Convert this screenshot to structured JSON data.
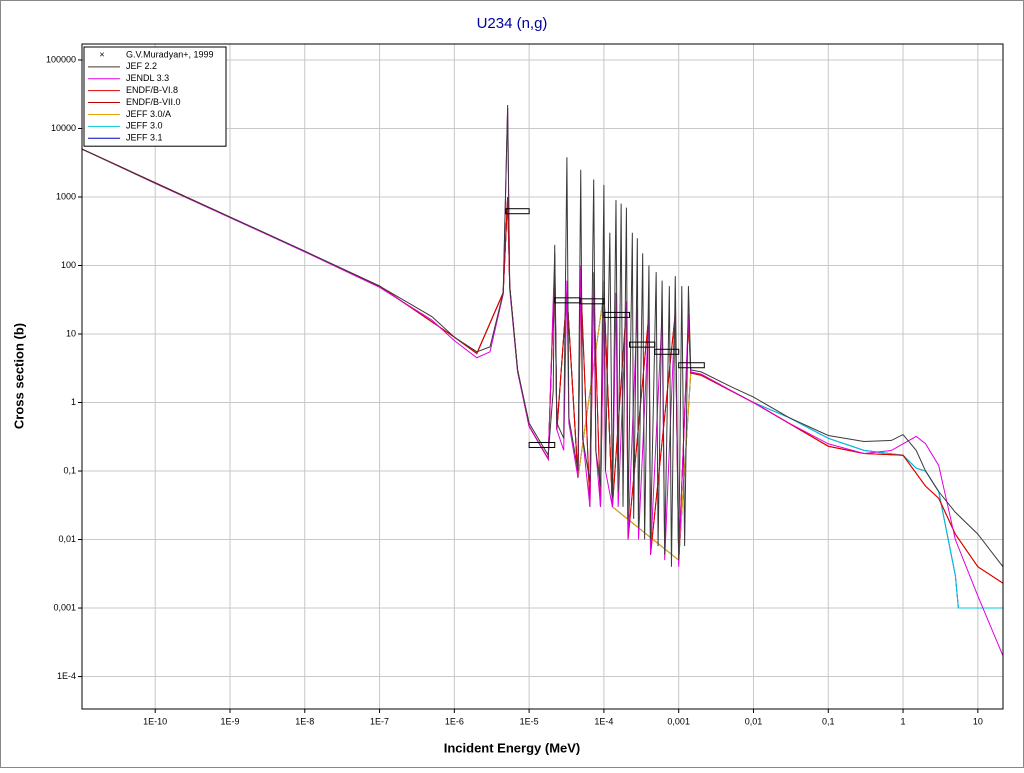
{
  "chart_data": {
    "type": "line",
    "title": "U234 (n,g)",
    "x_label": "Incident Energy (MeV)",
    "y_label": "Cross section (b)",
    "xscale": "log",
    "yscale": "log",
    "grid": true,
    "legend": "top-left",
    "xlim": [
      1.05e-11,
      21.7
    ],
    "ylim": [
      3.36e-05,
      171000
    ],
    "xticks": [
      {
        "value": 1e-10,
        "label": "1E-10"
      },
      {
        "value": 1e-09,
        "label": "1E-9"
      },
      {
        "value": 1e-08,
        "label": "1E-8"
      },
      {
        "value": 1e-07,
        "label": "1E-7"
      },
      {
        "value": 1e-06,
        "label": "1E-6"
      },
      {
        "value": 1e-05,
        "label": "1E-5"
      },
      {
        "value": 0.0001,
        "label": "1E-4"
      },
      {
        "value": 0.001,
        "label": "0,001"
      },
      {
        "value": 0.01,
        "label": "0,01"
      },
      {
        "value": 0.1,
        "label": "0,1"
      },
      1,
      10
    ],
    "yticks": [
      {
        "value": 0.0001,
        "label": "1E-4"
      },
      {
        "value": 0.001,
        "label": "0,001"
      },
      {
        "value": 0.01,
        "label": "0,01"
      },
      {
        "value": 0.1,
        "label": "0,1"
      },
      1,
      10,
      100,
      1000,
      10000,
      100000
    ],
    "experimental": {
      "name": "G.V.Muradyan+, 1999",
      "color": "#000000",
      "x_low": [
        4.9e-06,
        1e-05,
        2.2e-05,
        4.8e-05,
        0.0001,
        0.00022,
        0.00048,
        0.001
      ],
      "x_high": [
        1e-05,
        2.2e-05,
        4.8e-05,
        0.0001,
        0.00022,
        0.00048,
        0.001,
        0.0022
      ],
      "values": [
        620,
        0.24,
        31,
        30,
        19,
        7,
        5.5,
        3.5
      ]
    },
    "series": [
      {
        "name": "JEF 2.2",
        "color": "#3a3a3a",
        "x": [
          1.05e-11,
          1e-10,
          1e-09,
          1e-08,
          1e-07,
          5e-07,
          1e-06,
          2e-06,
          3e-06,
          4.5e-06,
          5.16e-06,
          5.5e-06,
          7e-06,
          1e-05,
          1.8e-05,
          2.1e-05,
          2.2e-05,
          2.35e-05,
          2.9e-05,
          3.2e-05,
          3.4e-05,
          4.5e-05,
          4.9e-05,
          5.2e-05,
          6.5e-05,
          7.3e-05,
          7.8e-05,
          9e-05,
          0.0001,
          0.000105,
          0.00012,
          0.00013,
          0.000145,
          0.000155,
          0.00017,
          0.00018,
          0.0002,
          0.00021,
          0.00024,
          0.00025,
          0.00028,
          0.00029,
          0.00033,
          0.00035,
          0.0004,
          0.00042,
          0.0005,
          0.00053,
          0.0006,
          0.00065,
          0.00075,
          0.0008,
          0.0009,
          0.001,
          0.0011,
          0.0012,
          0.00135,
          0.00145,
          0.002,
          0.005,
          0.01,
          0.03,
          0.1,
          0.3,
          0.7,
          1,
          1.5,
          2,
          3,
          5,
          10,
          21.7
        ],
        "values": [
          5000,
          1600,
          510,
          162,
          50,
          18,
          9,
          5.5,
          6.5,
          40,
          22000,
          50,
          3,
          0.5,
          0.17,
          1.5,
          200,
          0.5,
          0.3,
          3800,
          0.6,
          0.1,
          2500,
          0.3,
          0.07,
          1800,
          0.2,
          0.06,
          1500,
          0.1,
          300,
          0.04,
          900,
          0.05,
          800,
          0.03,
          700,
          0.02,
          300,
          0.02,
          250,
          0.015,
          150,
          0.01,
          100,
          0.01,
          80,
          0.008,
          60,
          0.006,
          50,
          0.004,
          70,
          0.005,
          50,
          0.008,
          50,
          3,
          2.8,
          1.7,
          1.2,
          0.6,
          0.33,
          0.27,
          0.28,
          0.34,
          0.2,
          0.1,
          0.05,
          0.025,
          0.012,
          0.004
        ]
      },
      {
        "name": "JENDL 3.3",
        "color": "#e000e0",
        "x": [
          1.05e-11,
          1e-10,
          1e-09,
          1e-08,
          1e-07,
          5e-07,
          1e-06,
          2e-06,
          3e-06,
          4.5e-06,
          5.16e-06,
          5.5e-06,
          7e-06,
          1e-05,
          1.8e-05,
          2.2e-05,
          2.35e-05,
          2.9e-05,
          3.2e-05,
          3.4e-05,
          4.5e-05,
          4.9e-05,
          5.2e-05,
          6.5e-05,
          7.3e-05,
          7.8e-05,
          9e-05,
          0.0001,
          0.000105,
          0.00013,
          0.000145,
          0.000155,
          0.0002,
          0.00021,
          0.00028,
          0.00029,
          0.0004,
          0.00042,
          0.0006,
          0.00065,
          0.0009,
          0.001,
          0.00135,
          0.00145,
          0.002,
          0.005,
          0.01,
          0.03,
          0.1,
          0.3,
          0.7,
          1,
          1.5,
          2,
          3,
          5,
          10,
          21.7
        ],
        "values": [
          5000,
          1580,
          500,
          158,
          48,
          16,
          8,
          4.5,
          5.5,
          38,
          20000,
          45,
          2.8,
          0.45,
          0.15,
          150,
          0.4,
          0.2,
          60,
          0.5,
          0.08,
          100,
          0.3,
          0.03,
          80,
          0.2,
          0.03,
          60,
          0.1,
          0.03,
          40,
          0.03,
          30,
          0.01,
          25,
          0.01,
          20,
          0.006,
          20,
          0.005,
          25,
          0.004,
          20,
          2.8,
          2.6,
          1.5,
          1.0,
          0.5,
          0.25,
          0.18,
          0.2,
          0.25,
          0.32,
          0.25,
          0.12,
          0.01,
          0.0015,
          0.0002
        ]
      },
      {
        "name": "ENDF/B-VI.8",
        "color": "#e00000",
        "x": [
          1.05e-11,
          1e-09,
          1e-07,
          1e-06,
          2e-06,
          4.5e-06,
          5.16e-06,
          5.5e-06,
          7e-06,
          1e-05,
          1.8e-05,
          2.2e-05,
          2.35e-05,
          3.2e-05,
          4.5e-05,
          4.9e-05,
          6.5e-05,
          7.3e-05,
          9e-05,
          0.0001,
          0.00013,
          0.0002,
          0.00021,
          0.0004,
          0.00042,
          0.0009,
          0.001,
          0.00135,
          0.00145,
          0.002,
          0.01,
          0.1,
          0.3,
          1,
          2,
          3,
          5,
          10,
          21.7
        ],
        "values": [
          5000,
          510,
          50,
          9,
          5.2,
          40,
          1000,
          50,
          3,
          0.45,
          0.15,
          100,
          0.4,
          40,
          0.08,
          60,
          0.03,
          50,
          0.03,
          40,
          0.03,
          25,
          0.01,
          20,
          0.006,
          20,
          0.005,
          15,
          2.7,
          2.5,
          1.0,
          0.23,
          0.18,
          0.17,
          0.06,
          0.04,
          0.012,
          0.004,
          0.0023
        ]
      },
      {
        "name": "ENDF/B-VII.0",
        "color": "#c00000",
        "x": [
          1.05e-11,
          1e-09,
          1e-07,
          1e-06,
          2e-06,
          4.5e-06,
          5.16e-06,
          5.5e-06,
          7e-06,
          1e-05,
          1.8e-05,
          2.2e-05,
          2.35e-05,
          3.2e-05,
          4.5e-05,
          4.9e-05,
          6.5e-05,
          7.3e-05,
          9e-05,
          0.0001,
          0.00013,
          0.0002,
          0.00021,
          0.0004,
          0.00042,
          0.0009,
          0.001,
          0.00135,
          0.00145,
          0.002,
          0.01,
          0.1,
          0.3,
          1,
          2,
          3,
          5,
          10,
          21.7
        ],
        "values": [
          5000,
          510,
          50,
          9,
          5.2,
          40,
          1000,
          50,
          3,
          0.45,
          0.15,
          100,
          0.4,
          40,
          0.08,
          60,
          0.03,
          50,
          0.03,
          40,
          0.03,
          25,
          0.01,
          20,
          0.006,
          20,
          0.005,
          15,
          2.7,
          2.5,
          1.0,
          0.23,
          0.18,
          0.17,
          0.06,
          0.04,
          0.012,
          0.004,
          0.0023
        ]
      },
      {
        "name": "JEFF 3.0/A",
        "color": "#f0a000",
        "x": [
          1.05e-11,
          1e-09,
          1e-07,
          1e-06,
          2e-06,
          4.5e-06,
          5.16e-06,
          5.5e-06,
          7e-06,
          1e-05,
          1.8e-05,
          2.2e-05,
          2.35e-05,
          3.2e-05,
          4.5e-05,
          0.0001,
          0.00013,
          0.001,
          0.00145,
          0.002,
          0.01,
          0.1,
          0.3,
          1,
          2,
          3,
          5,
          10,
          21.7
        ],
        "values": [
          5000,
          510,
          50,
          9,
          5.2,
          40,
          1000,
          50,
          3,
          0.45,
          0.15,
          100,
          0.4,
          40,
          0.08,
          40,
          0.03,
          0.005,
          2.7,
          2.5,
          1.0,
          0.23,
          0.18,
          0.17,
          0.06,
          0.04,
          0.012,
          0.004,
          0.0023
        ]
      },
      {
        "name": "JEFF 3.0",
        "color": "#00c8e0",
        "x": [
          1.05e-11,
          1e-09,
          1e-07,
          1e-06,
          2e-06,
          4.5e-06,
          5.16e-06,
          5.5e-06,
          7e-06,
          1e-05,
          1.8e-05,
          2.2e-05,
          2.35e-05,
          3.2e-05,
          4.5e-05,
          0.0001,
          0.00013,
          0.001,
          0.00145,
          0.002,
          0.01,
          0.03,
          0.1,
          0.3,
          1,
          1.5,
          2,
          3,
          5,
          5.5,
          21.7
        ],
        "values": [
          5000,
          510,
          50,
          9,
          5.2,
          40,
          1000,
          50,
          3,
          0.45,
          0.15,
          100,
          0.4,
          40,
          0.08,
          40,
          0.03,
          0.005,
          2.7,
          2.5,
          1.0,
          0.6,
          0.3,
          0.2,
          0.17,
          0.11,
          0.1,
          0.05,
          0.003,
          0.001,
          0.001
        ]
      },
      {
        "name": "JEFF 3.1",
        "color": "#0000c0",
        "x": [
          1.05e-11,
          1e-09,
          1e-07,
          1e-06,
          2e-06,
          4.5e-06,
          5.16e-06,
          5.5e-06,
          7e-06,
          1e-05,
          1.8e-05,
          2.2e-05,
          2.35e-05,
          3.2e-05,
          4.5e-05,
          0.0001,
          0.00013,
          0.001,
          0.00145,
          0.002,
          0.01,
          0.03,
          0.1,
          0.3,
          1,
          1.5,
          2,
          3,
          5,
          5.5,
          21.7
        ],
        "values": [
          5000,
          510,
          50,
          9,
          5.2,
          40,
          1000,
          50,
          3,
          0.45,
          0.15,
          100,
          0.4,
          40,
          0.08,
          40,
          0.03,
          0.005,
          2.7,
          2.5,
          1.0,
          0.6,
          0.3,
          0.2,
          0.17,
          0.11,
          0.1,
          0.05,
          0.003,
          0.001,
          0.001
        ]
      }
    ]
  }
}
